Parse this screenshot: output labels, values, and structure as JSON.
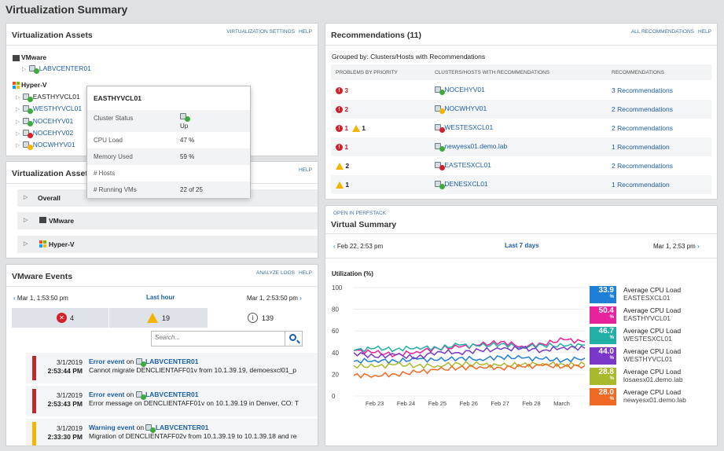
{
  "page_title": "Virtualization Summary",
  "assets": {
    "title": "Virtualization Assets",
    "links": [
      "VIRTUALIZATION SETTINGS",
      "HELP"
    ],
    "vmware_label": "VMware",
    "vcenter": "LABVCENTER01",
    "hyperv_label": "Hyper-V",
    "hosts": [
      {
        "name": "EASTHYVCL01",
        "status": "green"
      },
      {
        "name": "WESTHYVCL01",
        "status": "green"
      },
      {
        "name": "NOCEHYV01",
        "status": "green"
      },
      {
        "name": "NOCEHYV02",
        "status": "red"
      },
      {
        "name": "NOCWHYV01",
        "status": "yellow"
      }
    ]
  },
  "tooltip": {
    "title": "EASTHYVCL01",
    "rows": [
      {
        "k": "Cluster Status",
        "v": "Up"
      },
      {
        "k": "CPU Load",
        "v": "47 %"
      },
      {
        "k": "Memory Used",
        "v": "59 %"
      },
      {
        "k": "# Hosts",
        "v": ""
      },
      {
        "k": "# Running VMs",
        "v": "22 of 25"
      }
    ]
  },
  "assets2": {
    "title": "Virtualization Assets",
    "links": [
      "HELP"
    ],
    "items": [
      "Overall",
      "VMware",
      "Hyper-V"
    ]
  },
  "events": {
    "title": "VMware Events",
    "links": [
      "ANALYZE LOGS",
      "HELP"
    ],
    "start": "Mar 1, 1:53:50 pm",
    "range": "Last hour",
    "end": "Mar 1, 2:53:50 pm",
    "counts": {
      "error": "4",
      "warning": "19",
      "info": "139"
    },
    "search_placeholder": "Search...",
    "items": [
      {
        "date": "3/1/2019",
        "time": "2:53:44 PM",
        "type": "Error event",
        "on": "on",
        "source": "LABVCENTER01",
        "msg": "Cannot migrate DENCLIENTAFF01v from 10.1.39.19, demoesxcl01_p",
        "color": "#c0282e"
      },
      {
        "date": "3/1/2019",
        "time": "2:53:43 PM",
        "type": "Error event",
        "on": "on",
        "source": "LABVCENTER01",
        "msg": "Error message on DENCLIENTAFF01v on 10.1.39.19 in Denver, CO: T",
        "color": "#c0282e"
      },
      {
        "date": "3/1/2019",
        "time": "2:33:30 PM",
        "type": "Warning event",
        "on": "on",
        "source": "LABVCENTER01",
        "msg": "Migration of DENCLIENTAFF02v from 10.1.39.19 to 10.1.39.18 and re",
        "color": "#f5b400"
      }
    ]
  },
  "recs": {
    "title": "Recommendations (11)",
    "links": [
      "ALL RECOMMENDATIONS",
      "HELP"
    ],
    "grouped": "Grouped by: Clusters/Hosts with Recommendations",
    "headers": [
      "PROBLEMS BY PRIORITY",
      "CLUSTERS/HOSTS WITH RECOMMENDATIONS",
      "RECOMMENDATIONS"
    ],
    "rows": [
      {
        "crit": "3",
        "warn": "",
        "host": "NOCEHYV01",
        "hstatus": "green",
        "rec": "3 Recommendations"
      },
      {
        "crit": "2",
        "warn": "",
        "host": "NOCWHYV01",
        "hstatus": "yellow",
        "rec": "2 Recommendations"
      },
      {
        "crit": "1",
        "warn": "1",
        "host": "WESTESXCL01",
        "hstatus": "red",
        "rec": "2 Recommendations"
      },
      {
        "crit": "1",
        "warn": "",
        "host": "newyesx01.demo.lab",
        "hstatus": "green",
        "rec": "1 Recommendation"
      },
      {
        "crit": "",
        "warn": "2",
        "host": "EASTESXCL01",
        "hstatus": "red",
        "rec": "2 Recommendations"
      },
      {
        "crit": "",
        "warn": "1",
        "host": "DENESXCL01",
        "hstatus": "green",
        "rec": "1 Recommendation"
      }
    ]
  },
  "summary": {
    "open_link": "OPEN IN PERFSTACK",
    "title": "Virtual Summary",
    "start": "Feb 22, 2:53 pm",
    "range": "Last 7 days",
    "end": "Mar 1, 2:53 pm",
    "ylabel": "Utilization (%)",
    "legend": [
      {
        "val": "33.9",
        "unit": "%",
        "name": "Average CPU Load",
        "host": "EASTESXCL01",
        "color": "#1f7fd6"
      },
      {
        "val": "50.4",
        "unit": "%",
        "name": "Average CPU Load",
        "host": "EASTHYVCL01",
        "color": "#e8219c"
      },
      {
        "val": "46.7",
        "unit": "%",
        "name": "Average CPU Load",
        "host": "WESTESXCL01",
        "color": "#22b0a6"
      },
      {
        "val": "44.0",
        "unit": "%",
        "name": "Average CPU Load",
        "host": "WESTHYVCL01",
        "color": "#7b38c8"
      },
      {
        "val": "28.8",
        "unit": "%",
        "name": "Average CPU Load",
        "host": "losaesx01.demo.lab",
        "color": "#a9b92e"
      },
      {
        "val": "28.0",
        "unit": "%",
        "name": "Average CPU Load",
        "host": "newyesx01.demo.lab",
        "color": "#ef6a24"
      }
    ]
  },
  "chart_data": {
    "type": "line",
    "title": "",
    "ylabel": "Utilization (%)",
    "ylim": [
      0,
      100
    ],
    "yticks": [
      0,
      20,
      40,
      60,
      80,
      100
    ],
    "xticks": [
      "Feb 23",
      "Feb 24",
      "Feb 25",
      "Feb 26",
      "Feb 27",
      "Feb 28",
      "March"
    ],
    "series": [
      {
        "name": "EASTESXCL01",
        "color": "#1f7fd6",
        "values": [
          32,
          33,
          32,
          34,
          33,
          35,
          34,
          36,
          35,
          34,
          33,
          35
        ]
      },
      {
        "name": "EASTHYVCL01",
        "color": "#e8219c",
        "values": [
          42,
          40,
          38,
          41,
          44,
          45,
          47,
          50,
          46,
          48,
          52,
          50
        ]
      },
      {
        "name": "WESTESXCL01",
        "color": "#22b0a6",
        "values": [
          42,
          44,
          43,
          45,
          44,
          47,
          46,
          48,
          45,
          47,
          46,
          47
        ]
      },
      {
        "name": "WESTHYVCL01",
        "color": "#7b38c8",
        "values": [
          40,
          36,
          38,
          35,
          41,
          40,
          42,
          43,
          44,
          42,
          45,
          44
        ]
      },
      {
        "name": "losaesx01.demo.lab",
        "color": "#a9b92e",
        "values": [
          28,
          27,
          29,
          28,
          28,
          30,
          29,
          28,
          29,
          30,
          29,
          29
        ]
      },
      {
        "name": "newyesx01.demo.lab",
        "color": "#ef6a24",
        "values": [
          19,
          19,
          20,
          22,
          24,
          26,
          27,
          26,
          27,
          28,
          27,
          28
        ]
      }
    ]
  }
}
